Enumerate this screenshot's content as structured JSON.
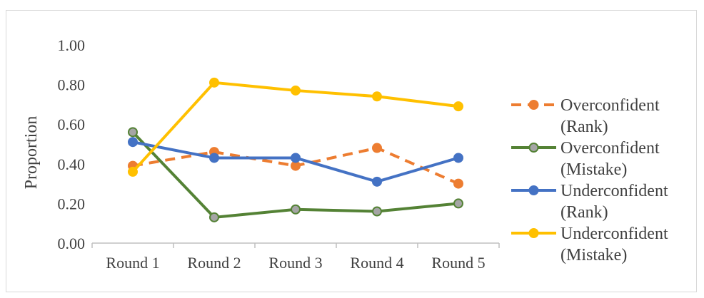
{
  "chart_data": {
    "type": "line",
    "title": "",
    "xlabel": "",
    "ylabel": "Proportion",
    "ylim": [
      0,
      1
    ],
    "yticks": [
      0.0,
      0.2,
      0.4,
      0.6,
      0.8,
      1.0
    ],
    "ytick_labels": [
      "0.00",
      "0.20",
      "0.40",
      "0.60",
      "0.80",
      "1.00"
    ],
    "categories": [
      "Round 1",
      "Round 2",
      "Round 3",
      "Round 4",
      "Round 5"
    ],
    "grid": false,
    "legend_position": "right",
    "series": [
      {
        "name": "Overconfident (Rank)",
        "legend_lines": [
          "Overconfident",
          "(Rank)"
        ],
        "values": [
          0.39,
          0.46,
          0.39,
          0.48,
          0.3
        ],
        "color": "#ED7D31",
        "dashed": true
      },
      {
        "name": "Overconfident (Mistake)",
        "legend_lines": [
          "Overconfident",
          "(Mistake)"
        ],
        "values": [
          0.56,
          0.13,
          0.17,
          0.16,
          0.2
        ],
        "color": "#548235",
        "marker_fill": "#A5A5A5",
        "dashed": false
      },
      {
        "name": "Underconfident (Rank)",
        "legend_lines": [
          "Underconfident",
          "(Rank)"
        ],
        "values": [
          0.51,
          0.43,
          0.43,
          0.31,
          0.43
        ],
        "color": "#4472C4",
        "dashed": false
      },
      {
        "name": "Underconfident (Mistake)",
        "legend_lines": [
          "Underconfident",
          "(Mistake)"
        ],
        "values": [
          0.36,
          0.81,
          0.77,
          0.74,
          0.69
        ],
        "color": "#FFC000",
        "dashed": false
      }
    ]
  }
}
